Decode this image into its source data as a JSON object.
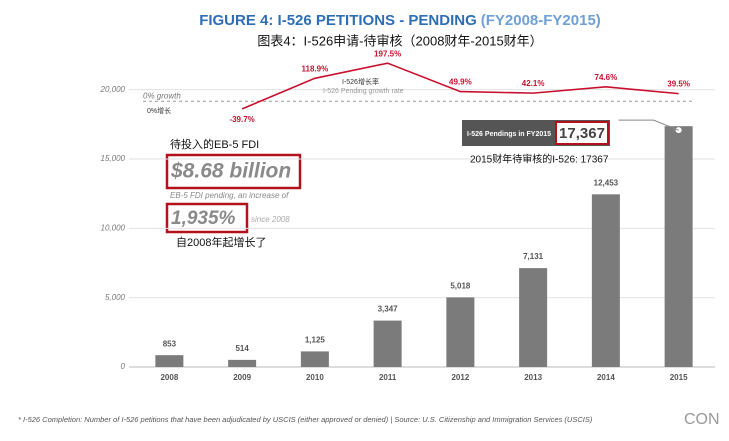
{
  "chart_data": {
    "type": "bar",
    "title": "FIGURE 4: I-526 PETITIONS - PENDING",
    "title_range": "(FY2008-FY2015)",
    "subtitle": "图表4：I-526申请-待审核（2008财年-2015财年）",
    "categories": [
      "2008",
      "2009",
      "2010",
      "2011",
      "2012",
      "2013",
      "2014",
      "2015"
    ],
    "ylim": [
      0,
      22500
    ],
    "yticks": [
      0,
      {
        "value": 5000,
        "label": "5,000"
      },
      {
        "value": 10000,
        "label": "10,000"
      },
      {
        "value": 15000,
        "label": "15,000"
      },
      {
        "value": 20000,
        "label": "20,000"
      }
    ],
    "y2lim": [
      -1380,
      240
    ],
    "y2ticks": [
      {
        "value": 0,
        "label": "0% growth"
      }
    ],
    "y2tick_label_cn": "0%增长",
    "grid": true,
    "series": [
      {
        "type": "bar",
        "color": "#7b7b7b",
        "values": [
          853,
          514,
          1125,
          3347,
          5018,
          7131,
          12453,
          17367
        ],
        "value_labels": [
          "853",
          "514",
          "1,125",
          "3,347",
          "5,018",
          "7,131",
          "12,453",
          "17,367"
        ]
      },
      {
        "type": "line",
        "axis": "y2",
        "color": "#c8102e",
        "name": "I-526 Pending growth rate",
        "name_cn": "I-526增长率",
        "values": [
          null,
          -39.7,
          118.9,
          197.5,
          49.9,
          42.1,
          74.6,
          39.5
        ],
        "value_labels": [
          null,
          "-39.7%",
          "118.9%",
          "197.5%",
          "49.9%",
          "42.1%",
          "74.6%",
          "39.5%"
        ]
      }
    ],
    "callout": {
      "label": "I-526 Pendings in FY2015",
      "label_cn": "2015财年待审核的I-526: 17367"
    },
    "annotations": {
      "fdi_cn": "待投入的EB-5 FDI",
      "fdi_amount": "$8.68 billion",
      "fdi_text": "EB-5 FDI pending, an increase of",
      "increase": "1,935%",
      "since": "since 2008",
      "since_cn": "自2008年起增长了"
    },
    "footnote": "* I-526 Completion: Number of I-526 petitions that have been adjudicated by USCIS (either approved or denied) | Source: U.S. Citizenship and Immigration Services (USCIS)",
    "logo": "CON"
  }
}
